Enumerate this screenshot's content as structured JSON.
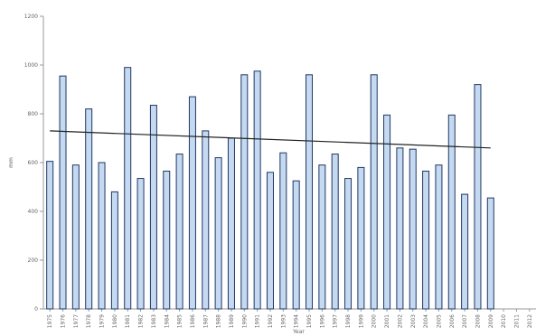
{
  "chart_data": {
    "type": "bar",
    "title": "",
    "xlabel": "Year",
    "ylabel": "mm",
    "ylim": [
      0,
      1200
    ],
    "yticks": [
      0,
      200,
      400,
      600,
      800,
      1000,
      1200
    ],
    "yticklabels": [
      "0",
      "200",
      "400",
      "600",
      "800",
      "1000",
      "1200"
    ],
    "grid": false,
    "legend": "none",
    "categories": [
      "1975",
      "1976",
      "1977",
      "1978",
      "1979",
      "1980",
      "1981",
      "1982",
      "1983",
      "1984",
      "1985",
      "1986",
      "1987",
      "1988",
      "1989",
      "1990",
      "1991",
      "1992",
      "1993",
      "1994",
      "1995",
      "1996",
      "1997",
      "1998",
      "1999",
      "2000",
      "2001",
      "2002",
      "2003",
      "2004",
      "2005",
      "2006",
      "2007",
      "2008",
      "2009",
      "2010",
      "2011",
      "2012"
    ],
    "values": [
      605,
      955,
      590,
      820,
      600,
      480,
      990,
      535,
      835,
      565,
      635,
      870,
      730,
      620,
      700,
      960,
      975,
      560,
      640,
      525,
      960,
      590,
      635,
      535,
      580,
      960,
      795,
      660,
      655,
      565,
      590,
      795,
      470,
      920,
      455,
      0,
      0,
      0
    ],
    "trendline": {
      "start": 730,
      "end": 660
    },
    "colors": {
      "bar_fill": "#c5d9f1",
      "bar_stroke": "#1f3864",
      "trendline": "#222222",
      "axis": "#999999"
    }
  }
}
